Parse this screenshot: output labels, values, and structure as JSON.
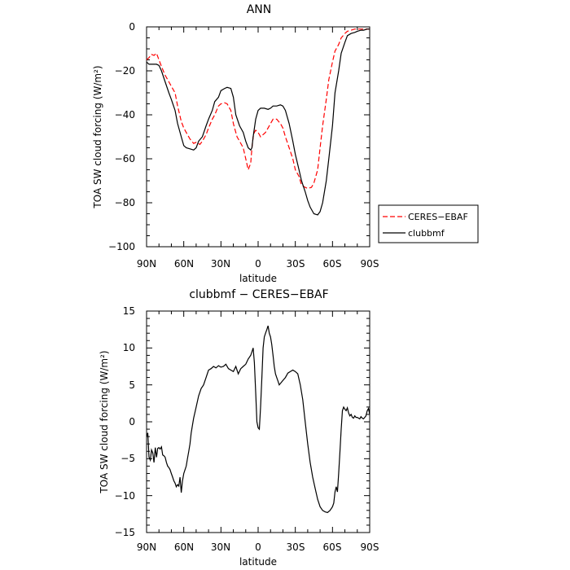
{
  "chart_data": [
    {
      "type": "line",
      "title": "ANN",
      "xlabel": "latitude",
      "ylabel": "TOA SW cloud forcing (W/m²)",
      "xlim": [
        90,
        -90
      ],
      "ylim": [
        -100,
        0
      ],
      "xticks": [
        90,
        60,
        30,
        0,
        -30,
        -60,
        -90
      ],
      "xtick_labels": [
        "90N",
        "60N",
        "30N",
        "0",
        "30S",
        "60S",
        "90S"
      ],
      "yticks": [
        0,
        -20,
        -40,
        -60,
        -80,
        -100
      ],
      "ytick_labels": [
        "0",
        "−20",
        "−40",
        "−60",
        "−80",
        "−100"
      ],
      "grid": false,
      "legend_position": "right",
      "series": [
        {
          "name": "CERES−EBAF",
          "color": "#ff0000",
          "style": "dashed",
          "x": [
            90,
            88,
            86,
            84,
            82,
            80,
            78,
            75,
            72,
            70,
            67,
            65,
            62,
            60,
            57,
            55,
            52,
            50,
            47,
            45,
            42,
            40,
            37,
            35,
            32,
            30,
            27,
            25,
            22,
            20,
            17,
            15,
            12,
            10,
            8,
            6,
            5,
            4,
            3,
            2,
            0,
            -2,
            -4,
            -6,
            -8,
            -10,
            -12,
            -15,
            -18,
            -20,
            -22,
            -25,
            -28,
            -30,
            -33,
            -35,
            -38,
            -40,
            -43,
            -45,
            -48,
            -50,
            -52,
            -55,
            -57,
            -60,
            -62,
            -65,
            -67,
            -70,
            -72,
            -75,
            -78,
            -80,
            -83,
            -85,
            -88,
            -90
          ],
          "y": [
            -15,
            -14,
            -12.5,
            -13,
            -12,
            -15,
            -18,
            -22,
            -25,
            -27,
            -30,
            -36,
            -43,
            -46,
            -49,
            -51,
            -53,
            -52.5,
            -53.5,
            -52,
            -49,
            -46,
            -42,
            -40,
            -36,
            -35,
            -34.5,
            -35,
            -38,
            -44,
            -50,
            -52,
            -55,
            -60,
            -65,
            -62,
            -55,
            -50,
            -48,
            -47,
            -48,
            -50,
            -49,
            -48,
            -46,
            -44,
            -42,
            -42,
            -44,
            -46,
            -50,
            -55,
            -60,
            -65,
            -68,
            -72,
            -73,
            -73.5,
            -73,
            -71,
            -65,
            -55,
            -45,
            -33,
            -24,
            -16,
            -11,
            -8,
            -5,
            -3,
            -2,
            -1.5,
            -1,
            -1,
            -1,
            -1,
            -1,
            -1
          ]
        },
        {
          "name": "clubbmf",
          "color": "#000000",
          "style": "solid",
          "x": [
            90,
            88,
            85,
            82,
            80,
            78,
            75,
            72,
            70,
            67,
            65,
            62,
            60,
            58,
            55,
            52,
            50,
            48,
            45,
            42,
            40,
            37,
            35,
            32,
            30,
            27,
            25,
            22,
            20,
            18,
            15,
            12,
            10,
            8,
            6,
            5,
            4,
            2,
            0,
            -2,
            -5,
            -8,
            -10,
            -12,
            -15,
            -18,
            -20,
            -22,
            -25,
            -28,
            -30,
            -33,
            -35,
            -38,
            -40,
            -42,
            -45,
            -48,
            -50,
            -52,
            -55,
            -57,
            -60,
            -62,
            -65,
            -67,
            -70,
            -72,
            -75,
            -78,
            -80,
            -83,
            -85,
            -88,
            -90
          ],
          "y": [
            -16,
            -17,
            -17,
            -17,
            -17.5,
            -20,
            -25,
            -30,
            -33,
            -38,
            -44,
            -50,
            -54,
            -55,
            -55.5,
            -56,
            -55,
            -52,
            -50,
            -45,
            -42,
            -38,
            -34,
            -32,
            -29,
            -28,
            -27.5,
            -28,
            -32,
            -40,
            -45,
            -48,
            -52,
            -55,
            -56,
            -55,
            -50,
            -42,
            -38,
            -37,
            -37,
            -37.5,
            -37,
            -36,
            -36,
            -35.5,
            -36,
            -38,
            -44,
            -52,
            -58,
            -65,
            -70,
            -75,
            -79,
            -82,
            -85,
            -85.5,
            -84,
            -80,
            -70,
            -60,
            -45,
            -30,
            -20,
            -12,
            -7,
            -4,
            -3,
            -2.5,
            -2,
            -1.5,
            -1.5,
            -1,
            -1
          ]
        }
      ]
    },
    {
      "type": "line",
      "title": "clubbmf − CERES−EBAF",
      "xlabel": "latitude",
      "ylabel": "TOA SW cloud forcing (W/m²)",
      "xlim": [
        90,
        -90
      ],
      "ylim": [
        -15,
        15
      ],
      "xticks": [
        90,
        60,
        30,
        0,
        -30,
        -60,
        -90
      ],
      "xtick_labels": [
        "90N",
        "60N",
        "30N",
        "0",
        "30S",
        "60S",
        "90S"
      ],
      "yticks": [
        15,
        10,
        5,
        0,
        -5,
        -10,
        -15
      ],
      "ytick_labels": [
        "15",
        "10",
        "5",
        "0",
        "−5",
        "−10",
        "−15"
      ],
      "grid": false,
      "series": [
        {
          "color": "#000000",
          "style": "solid",
          "x": [
            90,
            89,
            88,
            87,
            86,
            85,
            84,
            83,
            82,
            81,
            80,
            79,
            78,
            77,
            76,
            75,
            74,
            73,
            72,
            71,
            70,
            69,
            68,
            67,
            66,
            65,
            64,
            63,
            62,
            61,
            60,
            59,
            58,
            57,
            56,
            55,
            54,
            53,
            52,
            50,
            48,
            46,
            44,
            42,
            40,
            38,
            36,
            34,
            32,
            30,
            28,
            26,
            24,
            22,
            20,
            18,
            16,
            14,
            12,
            10,
            8,
            6,
            5,
            4,
            3,
            2,
            1,
            0,
            -1,
            -2,
            -3,
            -4,
            -5,
            -6,
            -7,
            -8,
            -9,
            -10,
            -11,
            -12,
            -13,
            -14,
            -15,
            -16,
            -17,
            -18,
            -20,
            -22,
            -24,
            -26,
            -28,
            -30,
            -32,
            -34,
            -36,
            -38,
            -40,
            -42,
            -44,
            -46,
            -48,
            -50,
            -52,
            -54,
            -56,
            -58,
            -60,
            -61,
            -62,
            -63,
            -64,
            -65,
            -66,
            -67,
            -68,
            -69,
            -70,
            -71,
            -72,
            -73,
            -74,
            -75,
            -76,
            -77,
            -78,
            -79,
            -80,
            -81,
            -82,
            -83,
            -84,
            -85,
            -86,
            -87,
            -88,
            -89,
            -90
          ],
          "y": [
            -2,
            -1.5,
            -4.8,
            -5.2,
            -3.8,
            -4.2,
            -5.5,
            -3.5,
            -4.8,
            -3.6,
            -3.5,
            -3.7,
            -3.4,
            -4.5,
            -4.6,
            -4.8,
            -5.5,
            -6,
            -6.2,
            -6.5,
            -7,
            -7.5,
            -8,
            -8.3,
            -8.8,
            -8.5,
            -8.7,
            -7.5,
            -9.6,
            -8,
            -7,
            -6.5,
            -6,
            -5,
            -4,
            -3,
            -1.5,
            -0.5,
            0.5,
            2,
            3.5,
            4.5,
            5,
            6,
            7,
            7.2,
            7.5,
            7.3,
            7.6,
            7.4,
            7.5,
            7.8,
            7.2,
            7,
            6.8,
            7.5,
            6.5,
            7.2,
            7.5,
            7.8,
            8.5,
            9,
            9.5,
            10,
            8,
            4,
            0,
            -0.8,
            -1,
            2,
            6,
            10,
            11.5,
            12,
            12.5,
            13,
            12,
            11.5,
            10.5,
            9,
            7.5,
            6.5,
            6,
            5.5,
            5,
            5.2,
            5.6,
            6,
            6.6,
            6.8,
            7,
            6.8,
            6.5,
            5,
            3,
            0,
            -3,
            -5.5,
            -7.5,
            -9,
            -10.5,
            -11.5,
            -12,
            -12.2,
            -12.3,
            -12,
            -11.5,
            -11,
            -9.5,
            -8.8,
            -9.5,
            -7,
            -4,
            -1,
            1.5,
            2,
            1.7,
            1.5,
            1.9,
            1.2,
            0.8,
            1,
            0.6,
            0.5,
            0.8,
            0.6,
            0.6,
            0.5,
            0.4,
            0.7,
            0.5,
            0.4,
            0.6,
            0.8,
            1.5,
            1.8,
            1
          ]
        }
      ]
    }
  ]
}
